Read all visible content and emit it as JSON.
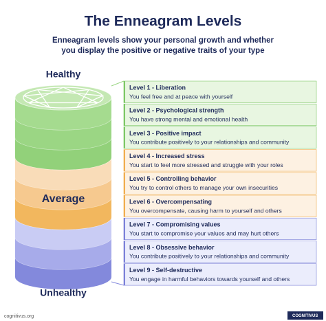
{
  "header": {
    "title": "The Enneagram Levels",
    "subtitle": [
      "Enneagram levels show your personal growth and whether",
      "you display the positive or negative traits of your type"
    ]
  },
  "scale": {
    "top": "Healthy",
    "middle": "Average",
    "bottom": "Unhealthy"
  },
  "levels": [
    {
      "title": "Level 1 - Liberation",
      "text": "You feel free and at peace with yourself"
    },
    {
      "title": "Level 2 - Psychological strength",
      "text": "You have strong mental and emotional health"
    },
    {
      "title": "Level 3 - Positive impact",
      "text": "You contribute positively to your relationships and community"
    },
    {
      "title": "Level 4 - Increased stress",
      "text": "You start to feel more stressed and struggle with your roles"
    },
    {
      "title": "Level 5 - Controlling behavior",
      "text": "You try to control others to manage your own insecurities"
    },
    {
      "title": "Level 6 - Overcompensating",
      "text": "You overcompensate, causing harm to yourself and others"
    },
    {
      "title": "Level 7 - Compromising values",
      "text": "You start to compromise your values and may hurt others"
    },
    {
      "title": "Level 8 - Obsessive behavior",
      "text": "You contribute positively to your relationships and community"
    },
    {
      "title": "Level 9 - Self-destructive",
      "text": "You engage in harmful behaviors towards yourself and others"
    }
  ],
  "footer": {
    "site": "cognitivus.org",
    "brand": "COGNITIVUS"
  }
}
